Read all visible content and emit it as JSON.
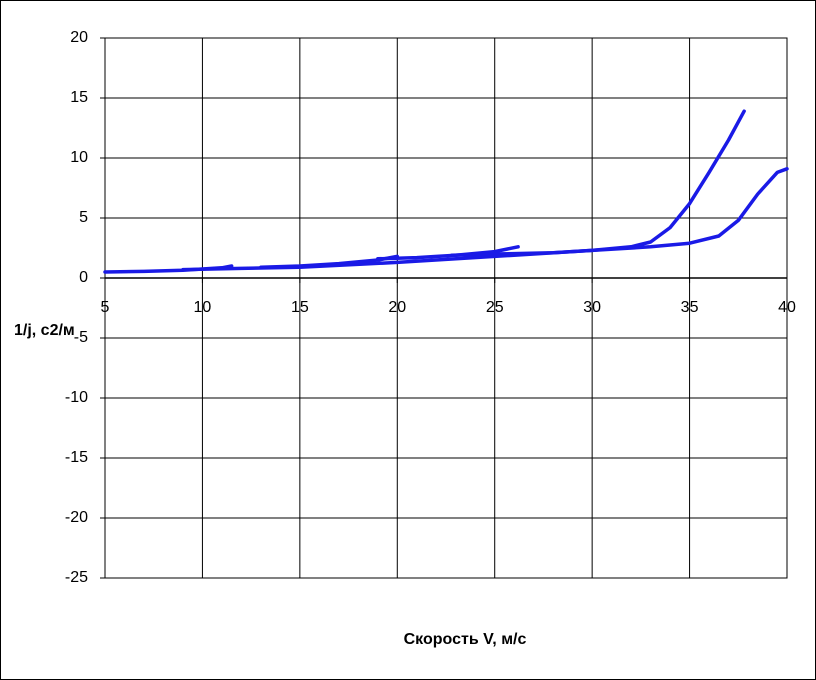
{
  "chart_data": {
    "type": "line",
    "x_label": "Скорость V, м/с",
    "y_label": "1/j, с2/м",
    "xlim": [
      5,
      40
    ],
    "xticks": [
      5,
      10,
      15,
      20,
      25,
      30,
      35,
      40
    ],
    "ylim": [
      -25,
      20
    ],
    "yticks": [
      -25,
      -20,
      -15,
      -10,
      -5,
      0,
      5,
      10,
      15,
      20
    ],
    "grid": true,
    "series": [
      {
        "color": "#1a1ae6",
        "x": [
          5,
          7,
          9,
          10,
          11,
          11.5
        ],
        "values": [
          0.5,
          0.55,
          0.65,
          0.75,
          0.85,
          1.0
        ]
      },
      {
        "color": "#1a1ae6",
        "x": [
          13,
          15,
          17,
          19,
          20
        ],
        "values": [
          0.9,
          1.0,
          1.2,
          1.5,
          1.8
        ]
      },
      {
        "color": "#1a1ae6",
        "x": [
          19,
          21,
          23,
          25,
          26.2
        ],
        "values": [
          1.6,
          1.7,
          1.9,
          2.2,
          2.6
        ]
      },
      {
        "color": "#1a1ae6",
        "x": [
          22.8,
          25,
          28,
          30,
          32,
          33,
          34,
          35,
          36,
          37,
          37.8
        ],
        "values": [
          1.9,
          2.0,
          2.1,
          2.3,
          2.6,
          3.0,
          4.2,
          6.2,
          8.8,
          11.5,
          13.9
        ]
      },
      {
        "color": "#1a1ae6",
        "x": [
          9,
          12,
          15,
          20,
          25,
          30,
          33,
          35,
          36.5,
          37.5,
          38.5,
          39.5,
          40
        ],
        "values": [
          0.7,
          0.8,
          0.9,
          1.3,
          1.8,
          2.3,
          2.6,
          2.9,
          3.5,
          4.8,
          7.0,
          8.8,
          9.1
        ]
      }
    ]
  }
}
